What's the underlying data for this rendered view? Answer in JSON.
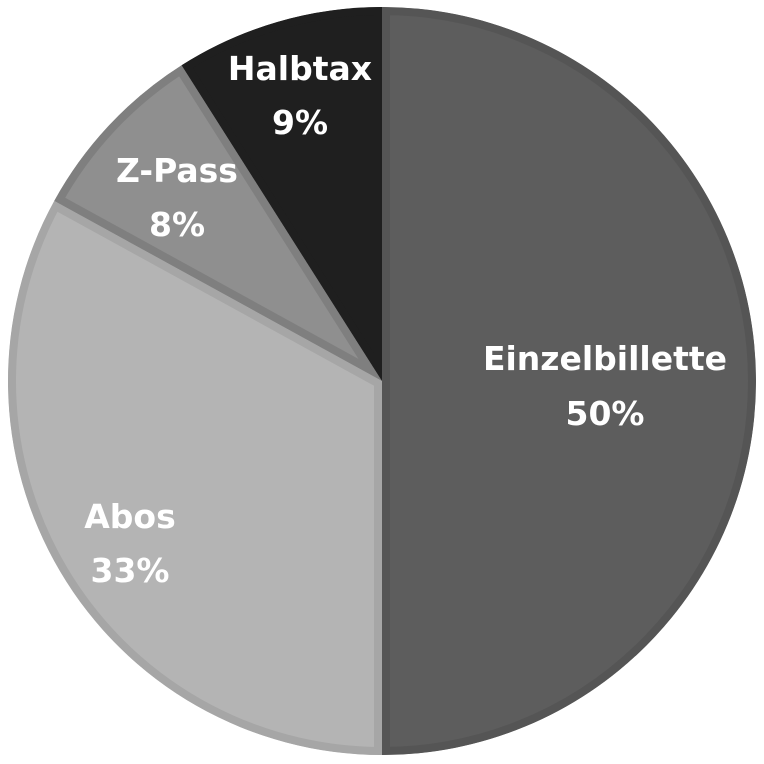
{
  "chart_data": {
    "type": "pie",
    "title": "",
    "start": "top",
    "direction": "clockwise",
    "slices": [
      {
        "label": "Einzelbillette",
        "value": 50,
        "value_label": "50%",
        "color": "#5d5d5d",
        "border": "#555555"
      },
      {
        "label": "Abos",
        "value": 33,
        "value_label": "33%",
        "color": "#b4b4b4",
        "border": "#a6a6a6"
      },
      {
        "label": "Z-Pass",
        "value": 8,
        "value_label": "8%",
        "color": "#8f8f8f",
        "border": "#7f7f7f"
      },
      {
        "label": "Halbtax",
        "value": 9,
        "value_label": "9%",
        "color": "#1f1f1f",
        "border": "#1f1f1f"
      }
    ]
  }
}
